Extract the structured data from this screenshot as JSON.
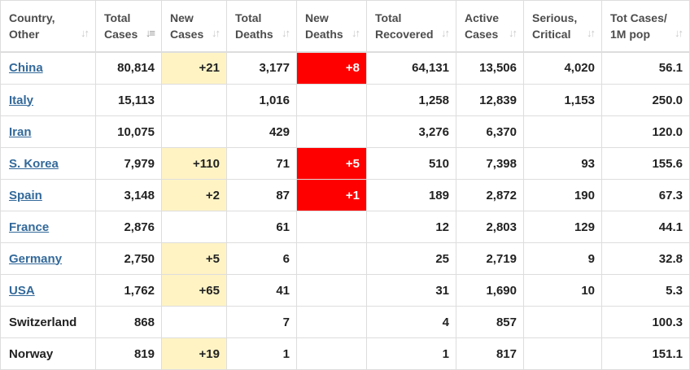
{
  "headers": [
    {
      "label": "Country,\nOther",
      "sort_icon": "sort-both-icon",
      "active": false
    },
    {
      "label": "Total\nCases",
      "sort_icon": "sort-descending-icon",
      "active": true
    },
    {
      "label": "New\nCases",
      "sort_icon": "sort-both-icon",
      "active": false
    },
    {
      "label": "Total\nDeaths",
      "sort_icon": "sort-both-icon",
      "active": false
    },
    {
      "label": "New\nDeaths",
      "sort_icon": "sort-both-icon",
      "active": false
    },
    {
      "label": "Total\nRecovered",
      "sort_icon": "sort-both-icon",
      "active": false
    },
    {
      "label": "Active\nCases",
      "sort_icon": "sort-both-icon",
      "active": false
    },
    {
      "label": "Serious,\nCritical",
      "sort_icon": "sort-both-icon",
      "active": false
    },
    {
      "label": "Tot Cases/\n1M pop",
      "sort_icon": "sort-both-icon",
      "active": false
    }
  ],
  "colors": {
    "link": "#33699a",
    "new_cases_highlight": "#fff3c4",
    "new_deaths_highlight": "#ff0000"
  },
  "rows": [
    {
      "country": "China",
      "link": true,
      "total_cases": "80,814",
      "new_cases": "+21",
      "total_deaths": "3,177",
      "new_deaths": "+8",
      "total_recovered": "64,131",
      "active_cases": "13,506",
      "serious_critical": "4,020",
      "tot_cases_per_1m": "56.1"
    },
    {
      "country": "Italy",
      "link": true,
      "total_cases": "15,113",
      "new_cases": "",
      "total_deaths": "1,016",
      "new_deaths": "",
      "total_recovered": "1,258",
      "active_cases": "12,839",
      "serious_critical": "1,153",
      "tot_cases_per_1m": "250.0"
    },
    {
      "country": "Iran",
      "link": true,
      "total_cases": "10,075",
      "new_cases": "",
      "total_deaths": "429",
      "new_deaths": "",
      "total_recovered": "3,276",
      "active_cases": "6,370",
      "serious_critical": "",
      "tot_cases_per_1m": "120.0"
    },
    {
      "country": "S. Korea",
      "link": true,
      "total_cases": "7,979",
      "new_cases": "+110",
      "total_deaths": "71",
      "new_deaths": "+5",
      "total_recovered": "510",
      "active_cases": "7,398",
      "serious_critical": "93",
      "tot_cases_per_1m": "155.6"
    },
    {
      "country": "Spain",
      "link": true,
      "total_cases": "3,148",
      "new_cases": "+2",
      "total_deaths": "87",
      "new_deaths": "+1",
      "total_recovered": "189",
      "active_cases": "2,872",
      "serious_critical": "190",
      "tot_cases_per_1m": "67.3"
    },
    {
      "country": "France",
      "link": true,
      "total_cases": "2,876",
      "new_cases": "",
      "total_deaths": "61",
      "new_deaths": "",
      "total_recovered": "12",
      "active_cases": "2,803",
      "serious_critical": "129",
      "tot_cases_per_1m": "44.1"
    },
    {
      "country": "Germany",
      "link": true,
      "total_cases": "2,750",
      "new_cases": "+5",
      "total_deaths": "6",
      "new_deaths": "",
      "total_recovered": "25",
      "active_cases": "2,719",
      "serious_critical": "9",
      "tot_cases_per_1m": "32.8"
    },
    {
      "country": "USA",
      "link": true,
      "total_cases": "1,762",
      "new_cases": "+65",
      "total_deaths": "41",
      "new_deaths": "",
      "total_recovered": "31",
      "active_cases": "1,690",
      "serious_critical": "10",
      "tot_cases_per_1m": "5.3"
    },
    {
      "country": "Switzerland",
      "link": false,
      "total_cases": "868",
      "new_cases": "",
      "total_deaths": "7",
      "new_deaths": "",
      "total_recovered": "4",
      "active_cases": "857",
      "serious_critical": "",
      "tot_cases_per_1m": "100.3"
    },
    {
      "country": "Norway",
      "link": false,
      "total_cases": "819",
      "new_cases": "+19",
      "total_deaths": "1",
      "new_deaths": "",
      "total_recovered": "1",
      "active_cases": "817",
      "serious_critical": "",
      "tot_cases_per_1m": "151.1"
    }
  ]
}
